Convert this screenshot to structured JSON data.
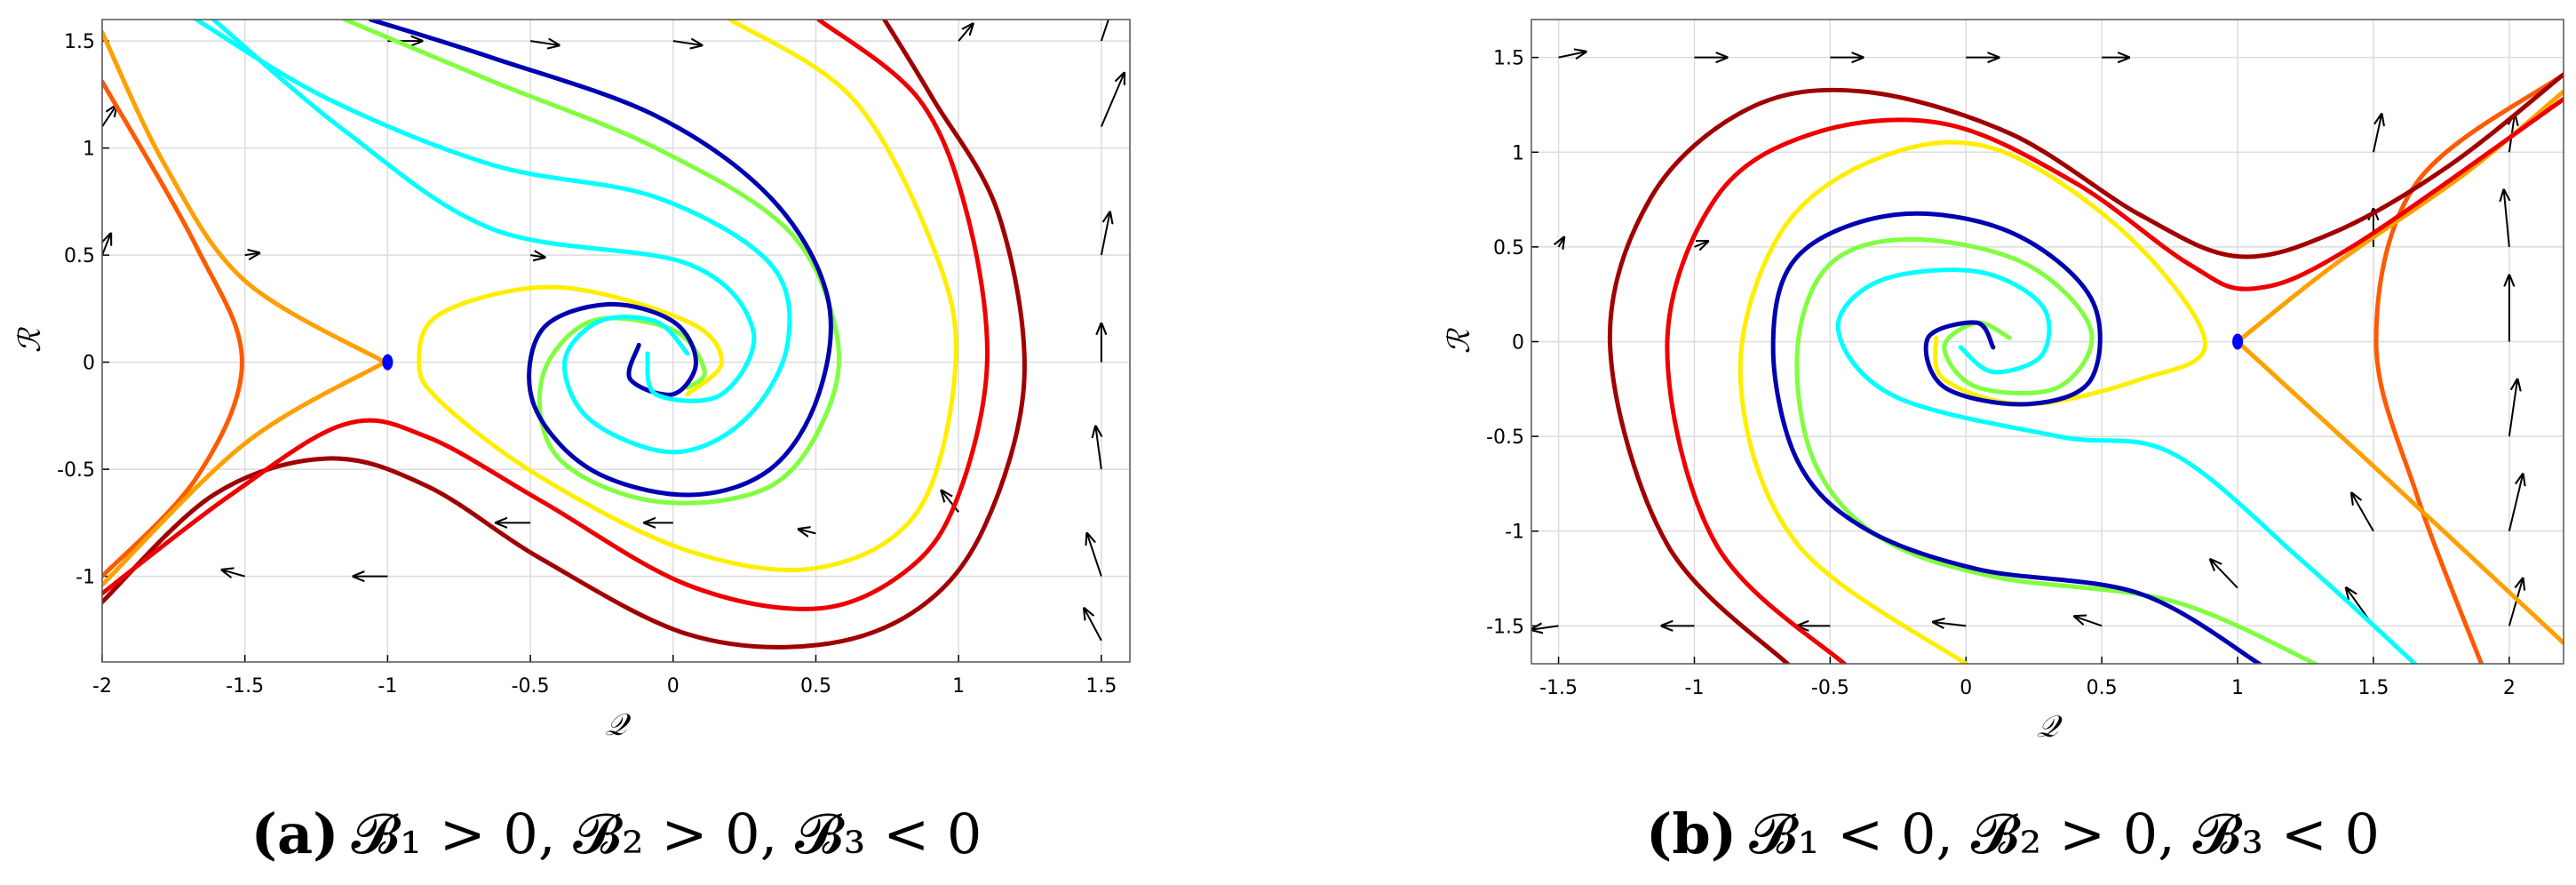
{
  "chart_data": [
    {
      "type": "line",
      "caption_label": "(a)",
      "caption": "𝓑₁ > 0, 𝓑₂ > 0, 𝓑₃ < 0",
      "xlabel": "𝒬",
      "ylabel": "ℛ",
      "xlim": [
        -2,
        1.6
      ],
      "ylim": [
        -1.4,
        1.6
      ],
      "xticks": [
        -2,
        -1.5,
        -1,
        -0.5,
        0,
        0.5,
        1,
        1.5
      ],
      "yticks": [
        -1,
        -0.5,
        0,
        0.5,
        1,
        1.5
      ],
      "grid": true,
      "series": [
        {
          "color": "#ff5a00",
          "x": [
            -2,
            -1.67,
            -1.51,
            -1.67,
            -2
          ],
          "values": [
            1.31,
            0.54,
            0,
            -0.54,
            -1.0
          ]
        },
        {
          "color": "#ffa000",
          "x": [
            -2,
            -1.78,
            -1.5,
            -1.01
          ],
          "values": [
            1.54,
            0.92,
            0.38,
            0
          ]
        },
        {
          "color": "#ffa000",
          "x": [
            -1.01,
            -1.5,
            -2
          ],
          "values": [
            0,
            -0.38,
            -1.04
          ]
        },
        {
          "color": "#a00000",
          "x": [
            -2,
            -1.61,
            -1.21,
            -0.86,
            -0.46,
            0.05,
            0.51,
            0.86,
            1.09,
            1.23,
            1.14,
            0.91,
            0.74
          ],
          "values": [
            -1.12,
            -0.62,
            -0.45,
            -0.58,
            -0.92,
            -1.27,
            -1.32,
            -1.15,
            -0.77,
            -0.08,
            0.69,
            1.23,
            1.6
          ]
        },
        {
          "color": "#ee0000",
          "x": [
            -2,
            -1.55,
            -1.15,
            -0.86,
            -0.46,
            0.05,
            0.51,
            0.83,
            1.0,
            1.1,
            1.03,
            0.86,
            0.51
          ],
          "values": [
            -1.08,
            -0.62,
            -0.29,
            -0.35,
            -0.65,
            -1.04,
            -1.15,
            -0.96,
            -0.62,
            0,
            0.69,
            1.23,
            1.6
          ]
        },
        {
          "color": "#ffee00",
          "x": [
            0.2,
            0.63,
            0.91,
            0.99,
            0.86,
            0.51,
            0.05,
            -0.46,
            -0.81,
            -0.89,
            -0.81,
            -0.41,
            0.05,
            0.17,
            0.05
          ],
          "values": [
            1.6,
            1.23,
            0.54,
            0,
            -0.69,
            -0.96,
            -0.88,
            -0.54,
            -0.19,
            0,
            0.23,
            0.35,
            0.19,
            0,
            -0.15
          ]
        },
        {
          "color": "#80ff40",
          "x": [
            -1.15,
            -0.63,
            -0.06,
            0.4,
            0.57,
            0.54,
            0.34,
            -0.06,
            -0.4,
            -0.46,
            -0.29,
            0,
            0.11,
            0.05
          ],
          "values": [
            1.6,
            1.31,
            1.0,
            0.62,
            0.15,
            -0.23,
            -0.58,
            -0.65,
            -0.45,
            -0.08,
            0.19,
            0.15,
            -0.04,
            -0.12
          ]
        },
        {
          "color": "#0000b0",
          "x": [
            -1.06,
            -0.63,
            -0.06,
            0.34,
            0.54,
            0.51,
            0.34,
            0.05,
            -0.29,
            -0.49,
            -0.46,
            -0.23,
            0,
            0.08,
            0,
            -0.15,
            -0.12
          ],
          "values": [
            1.6,
            1.42,
            1.15,
            0.77,
            0.31,
            -0.15,
            -0.5,
            -0.62,
            -0.5,
            -0.19,
            0.15,
            0.27,
            0.19,
            0,
            -0.15,
            -0.08,
            0.08
          ]
        },
        {
          "color": "#00ffff",
          "x": [
            -1.67,
            -1.21,
            -0.63,
            -0.06,
            0.34,
            0.4,
            0.25,
            0,
            -0.29,
            -0.38,
            -0.26,
            -0.06,
            0.05
          ],
          "values": [
            1.6,
            1.23,
            0.92,
            0.77,
            0.46,
            0.08,
            -0.27,
            -0.42,
            -0.27,
            0,
            0.19,
            0.19,
            0.04
          ]
        },
        {
          "color": "#00ffff",
          "x": [
            -1.61,
            -1.15,
            -0.63,
            0.05,
            0.28,
            0.17,
            -0.06,
            -0.09
          ],
          "values": [
            1.6,
            1.08,
            0.62,
            0.46,
            0.15,
            -0.15,
            -0.15,
            0.04
          ]
        }
      ],
      "equilibria": {
        "color": "#0000ff",
        "x": [
          -1
        ],
        "values": [
          0
        ]
      },
      "quiver": {
        "x": [
          1.5,
          1.5,
          1.5,
          1.5,
          1.5,
          1.5,
          1.5,
          1,
          0.5,
          0,
          -0.5,
          -1,
          -1.5,
          -2,
          -2,
          -1,
          -0.5,
          0,
          -0.5,
          -1.5,
          1
        ],
        "y": [
          1.5,
          1.1,
          0.5,
          0,
          -0.5,
          -1,
          -1.3,
          -0.7,
          -0.8,
          -0.75,
          -0.75,
          -1,
          -1,
          0.5,
          1.1,
          1.5,
          1.5,
          1.5,
          0.5,
          0.5,
          1.5
        ],
        "u": [
          0.05,
          0.08,
          0.03,
          0,
          -0.02,
          -0.05,
          -0.06,
          -0.06,
          -0.06,
          -0.1,
          -0.12,
          -0.12,
          -0.08,
          0.03,
          0.05,
          0.12,
          0.1,
          0.1,
          0.05,
          0.05,
          0.05
        ],
        "v": [
          0.2,
          0.25,
          0.2,
          0.18,
          0.2,
          0.2,
          0.15,
          0.1,
          0.02,
          0,
          0,
          0,
          0.03,
          0.1,
          0.1,
          0,
          -0.02,
          -0.02,
          -0.01,
          0.01,
          0.08
        ]
      }
    },
    {
      "type": "line",
      "caption_label": "(b)",
      "caption": "𝓑₁ < 0, 𝓑₂ > 0, 𝓑₃ < 0",
      "xlabel": "𝒬",
      "ylabel": "ℛ",
      "xlim": [
        -1.6,
        2.2
      ],
      "ylim": [
        -1.7,
        1.7
      ],
      "xticks": [
        -1.5,
        -1,
        -0.5,
        0,
        0.5,
        1,
        1.5,
        2
      ],
      "yticks": [
        -1.5,
        -1,
        -0.5,
        0,
        0.5,
        1,
        1.5
      ],
      "grid": true,
      "series": [
        {
          "color": "#ff5a00",
          "x": [
            1.9,
            1.66,
            1.51,
            1.66,
            2.2
          ],
          "values": [
            -1.71,
            -0.81,
            0,
            0.84,
            1.41
          ]
        },
        {
          "color": "#ffa000",
          "x": [
            1.0,
            1.36,
            1.84,
            2.2
          ],
          "values": [
            0,
            0.41,
            0.89,
            1.32
          ]
        },
        {
          "color": "#ffa000",
          "x": [
            1.0,
            1.48,
            2.2
          ],
          "values": [
            0,
            -0.63,
            -1.59
          ]
        },
        {
          "color": "#a00000",
          "x": [
            -0.65,
            -1.1,
            -1.31,
            -1.16,
            -0.8,
            -0.38,
            0.16,
            0.64,
            1.0,
            1.36,
            1.78,
            2.2
          ],
          "values": [
            -1.71,
            -1.07,
            -0.03,
            0.76,
            1.23,
            1.32,
            1.1,
            0.67,
            0.45,
            0.58,
            0.93,
            1.41
          ]
        },
        {
          "color": "#ee0000",
          "x": [
            -0.44,
            -0.92,
            -1.1,
            -0.92,
            -0.56,
            -0.08,
            0.4,
            0.82,
            1.06,
            1.42,
            2.2
          ],
          "values": [
            -1.71,
            -1.07,
            -0.03,
            0.76,
            1.1,
            1.15,
            0.84,
            0.41,
            0.28,
            0.5,
            1.28
          ]
        },
        {
          "color": "#ffee00",
          "x": [
            0.01,
            -0.62,
            -0.83,
            -0.68,
            -0.32,
            0.1,
            0.58,
            0.88,
            0.64,
            0.22,
            -0.08,
            -0.11
          ],
          "values": [
            -1.71,
            -1.07,
            -0.2,
            0.58,
            0.97,
            1.02,
            0.58,
            0,
            -0.2,
            -0.33,
            -0.2,
            0.02
          ]
        },
        {
          "color": "#80ff40",
          "x": [
            1.3,
            0.76,
            0.1,
            -0.32,
            -0.56,
            -0.62,
            -0.5,
            -0.2,
            0.22,
            0.46,
            0.34,
            0.04,
            -0.08,
            0.04,
            0.16
          ],
          "values": [
            -1.71,
            -1.37,
            -1.24,
            -1.03,
            -0.63,
            -0.03,
            0.41,
            0.54,
            0.41,
            0.06,
            -0.24,
            -0.24,
            -0.03,
            0.1,
            0.02
          ]
        },
        {
          "color": "#0000b0",
          "x": [
            1.09,
            0.64,
            0.04,
            -0.38,
            -0.62,
            -0.71,
            -0.62,
            -0.26,
            0.16,
            0.46,
            0.46,
            0.22,
            -0.08,
            -0.14,
            0.04,
            0.1
          ],
          "values": [
            -1.71,
            -1.33,
            -1.2,
            -0.98,
            -0.63,
            -0.03,
            0.45,
            0.67,
            0.58,
            0.23,
            -0.2,
            -0.33,
            -0.24,
            0.02,
            0.1,
            -0.03
          ]
        },
        {
          "color": "#00ffff",
          "x": [
            1.66,
            1.24,
            0.76,
            0.34,
            -0.26,
            -0.47,
            -0.32,
            0.04,
            0.28,
            0.28,
            0.1,
            -0.02
          ],
          "values": [
            -1.71,
            -1.16,
            -0.59,
            -0.5,
            -0.29,
            0.06,
            0.32,
            0.37,
            0.19,
            -0.07,
            -0.16,
            -0.03
          ]
        }
      ],
      "equilibria": {
        "color": "#0000ff",
        "x": [
          1
        ],
        "values": [
          0
        ]
      },
      "quiver": {
        "x": [
          2,
          2,
          2,
          2,
          2,
          2,
          1.5,
          1.5,
          1.5,
          1.5,
          1,
          0.5,
          0,
          -0.5,
          -1,
          -1.5,
          -1.5,
          -1,
          -0.5,
          0,
          0.5,
          -1,
          -1.5
        ],
        "y": [
          -1.5,
          -1,
          -0.5,
          0,
          0.5,
          1,
          -1.5,
          -1,
          0.5,
          1,
          -1.3,
          -1.5,
          -1.5,
          -1.5,
          -1.5,
          -1.5,
          1.5,
          1.5,
          1.5,
          1.5,
          1.5,
          0.5,
          0.5
        ],
        "u": [
          0.05,
          0.05,
          0.03,
          0,
          -0.02,
          0.02,
          -0.1,
          -0.08,
          0,
          0.03,
          -0.1,
          -0.1,
          -0.12,
          -0.12,
          -0.12,
          -0.1,
          0.1,
          0.12,
          0.12,
          0.12,
          0.1,
          0.05,
          0.02
        ],
        "v": [
          0.25,
          0.3,
          0.3,
          0.35,
          0.3,
          0.2,
          0.2,
          0.2,
          0.2,
          0.2,
          0.15,
          0.05,
          0.02,
          0,
          0,
          -0.02,
          0.03,
          0,
          0,
          0,
          0,
          0.03,
          0.05
        ]
      }
    }
  ]
}
